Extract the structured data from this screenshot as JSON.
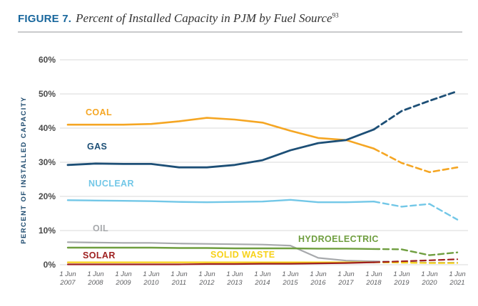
{
  "figure": {
    "label": "FIGURE 7.",
    "title": "Percent of Installed Capacity in PJM by Fuel Source",
    "footnote": "93"
  },
  "chart_data": {
    "type": "line",
    "title": "Percent of Installed Capacity in PJM by Fuel Source",
    "ylabel": "PERCENT OF INSTALLED CAPACITY",
    "ylim": [
      0,
      60
    ],
    "yticks": [
      "0%",
      "10%",
      "20%",
      "30%",
      "40%",
      "50%",
      "60%"
    ],
    "grid": true,
    "x_top_label": "1 Jun",
    "categories": [
      "2007",
      "2008",
      "2009",
      "2010",
      "2011",
      "2012",
      "2013",
      "2014",
      "2015",
      "2016",
      "2017",
      "2018",
      "2019",
      "2020",
      "2021"
    ],
    "solid_until_index": 11,
    "dashed_note": "lines are dashed (projected) after 1 Jun 2018",
    "series": [
      {
        "name": "OIL",
        "color": "#A7A9AC",
        "values": [
          6.6,
          6.5,
          6.4,
          6.4,
          6.2,
          6.1,
          6.0,
          5.9,
          5.6,
          2.0,
          1.2,
          1.0,
          0.8,
          0.6,
          0.6
        ]
      },
      {
        "name": "SOLID WASTE",
        "color": "#F7D117",
        "values": [
          0.7,
          0.7,
          0.7,
          0.7,
          0.7,
          0.7,
          0.7,
          0.7,
          0.7,
          0.7,
          0.7,
          0.7,
          0.6,
          0.5,
          0.5
        ]
      },
      {
        "name": "SOLAR",
        "color": "#9E1F1F",
        "values": [
          0.1,
          0.1,
          0.1,
          0.1,
          0.1,
          0.2,
          0.2,
          0.3,
          0.3,
          0.4,
          0.5,
          0.7,
          1.0,
          1.3,
          1.6
        ]
      },
      {
        "name": "HYDROELECTRIC",
        "color": "#6F9E3F",
        "values": [
          5.0,
          5.0,
          5.0,
          5.0,
          4.9,
          4.9,
          4.8,
          4.8,
          4.8,
          4.7,
          4.7,
          4.6,
          4.5,
          2.8,
          3.6
        ]
      },
      {
        "name": "NUCLEAR",
        "color": "#72C7E7",
        "values": [
          18.9,
          18.8,
          18.7,
          18.6,
          18.4,
          18.3,
          18.4,
          18.5,
          19.0,
          18.3,
          18.3,
          18.5,
          17.0,
          17.8,
          13.2
        ]
      },
      {
        "name": "COAL",
        "color": "#F5A623",
        "values": [
          41.0,
          41.0,
          41.0,
          41.2,
          42.0,
          43.0,
          42.5,
          41.6,
          39.2,
          37.1,
          36.5,
          34.0,
          29.8,
          27.1,
          28.5
        ]
      },
      {
        "name": "GAS",
        "color": "#1D4F76",
        "values": [
          29.2,
          29.6,
          29.5,
          29.5,
          28.5,
          28.5,
          29.2,
          30.6,
          33.5,
          35.6,
          36.5,
          39.6,
          45.0,
          48.0,
          50.8
        ]
      }
    ]
  }
}
